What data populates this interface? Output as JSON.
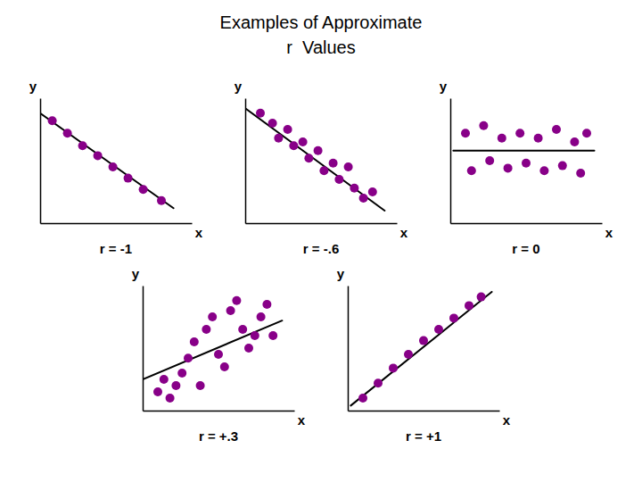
{
  "title": "Examples of Approximate",
  "subtitle": "r  Values",
  "chart_data": [
    {
      "type": "scatter",
      "title": "r = -1",
      "xlabel": "x",
      "ylabel": "y",
      "xlim": [
        0,
        1
      ],
      "ylim": [
        0,
        1
      ],
      "tick_labels": false,
      "series": [
        {
          "type": "scatter",
          "color": "#880088",
          "x": [
            0.08,
            0.18,
            0.28,
            0.38,
            0.48,
            0.58,
            0.68,
            0.8
          ],
          "values": [
            0.82,
            0.72,
            0.62,
            0.54,
            0.45,
            0.36,
            0.27,
            0.18
          ]
        },
        {
          "type": "line",
          "color": "#000000",
          "x": [
            0.0,
            0.88
          ],
          "values": [
            0.88,
            0.12
          ]
        }
      ]
    },
    {
      "type": "scatter",
      "title": "r = -.6",
      "xlabel": "x",
      "ylabel": "y",
      "xlim": [
        0,
        1
      ],
      "ylim": [
        0,
        1
      ],
      "tick_labels": false,
      "series": [
        {
          "type": "scatter",
          "color": "#880088",
          "x": [
            0.1,
            0.18,
            0.22,
            0.28,
            0.32,
            0.38,
            0.42,
            0.48,
            0.52,
            0.58,
            0.62,
            0.68,
            0.72,
            0.78,
            0.84
          ],
          "values": [
            0.88,
            0.8,
            0.68,
            0.75,
            0.62,
            0.65,
            0.52,
            0.58,
            0.42,
            0.48,
            0.35,
            0.45,
            0.28,
            0.2,
            0.25
          ]
        },
        {
          "type": "line",
          "color": "#000000",
          "x": [
            0.0,
            0.92
          ],
          "values": [
            0.92,
            0.1
          ]
        }
      ]
    },
    {
      "type": "scatter",
      "title": "r = 0",
      "xlabel": "x",
      "ylabel": "y",
      "xlim": [
        0,
        1
      ],
      "ylim": [
        0,
        1
      ],
      "tick_labels": false,
      "series": [
        {
          "type": "scatter",
          "color": "#880088",
          "x": [
            0.1,
            0.22,
            0.34,
            0.46,
            0.58,
            0.7,
            0.82,
            0.9,
            0.14,
            0.26,
            0.38,
            0.5,
            0.62,
            0.74,
            0.86
          ],
          "values": [
            0.72,
            0.78,
            0.68,
            0.72,
            0.68,
            0.75,
            0.65,
            0.72,
            0.42,
            0.5,
            0.44,
            0.48,
            0.42,
            0.46,
            0.4
          ]
        },
        {
          "type": "line",
          "color": "#000000",
          "x": [
            0.02,
            0.95
          ],
          "values": [
            0.58,
            0.58
          ]
        }
      ]
    },
    {
      "type": "scatter",
      "title": "r = +.3",
      "xlabel": "x",
      "ylabel": "y",
      "xlim": [
        0,
        1
      ],
      "ylim": [
        0,
        1
      ],
      "tick_labels": false,
      "series": [
        {
          "type": "scatter",
          "color": "#880088",
          "x": [
            0.1,
            0.14,
            0.18,
            0.22,
            0.26,
            0.3,
            0.34,
            0.38,
            0.42,
            0.46,
            0.5,
            0.54,
            0.58,
            0.62,
            0.66,
            0.7,
            0.74,
            0.78,
            0.82,
            0.86
          ],
          "values": [
            0.15,
            0.25,
            0.1,
            0.2,
            0.3,
            0.42,
            0.55,
            0.2,
            0.65,
            0.75,
            0.45,
            0.35,
            0.8,
            0.88,
            0.65,
            0.5,
            0.6,
            0.75,
            0.85,
            0.6
          ]
        },
        {
          "type": "line",
          "color": "#000000",
          "x": [
            0.0,
            0.92
          ],
          "values": [
            0.25,
            0.72
          ]
        }
      ]
    },
    {
      "type": "scatter",
      "title": "r = +1",
      "xlabel": "x",
      "ylabel": "y",
      "xlim": [
        0,
        1
      ],
      "ylim": [
        0,
        1
      ],
      "tick_labels": false,
      "series": [
        {
          "type": "scatter",
          "color": "#880088",
          "x": [
            0.1,
            0.2,
            0.3,
            0.4,
            0.5,
            0.6,
            0.7,
            0.8,
            0.88
          ],
          "values": [
            0.1,
            0.22,
            0.34,
            0.45,
            0.56,
            0.65,
            0.74,
            0.84,
            0.91
          ]
        },
        {
          "type": "line",
          "color": "#000000",
          "x": [
            0.02,
            0.95
          ],
          "values": [
            0.04,
            0.95
          ]
        }
      ]
    }
  ]
}
